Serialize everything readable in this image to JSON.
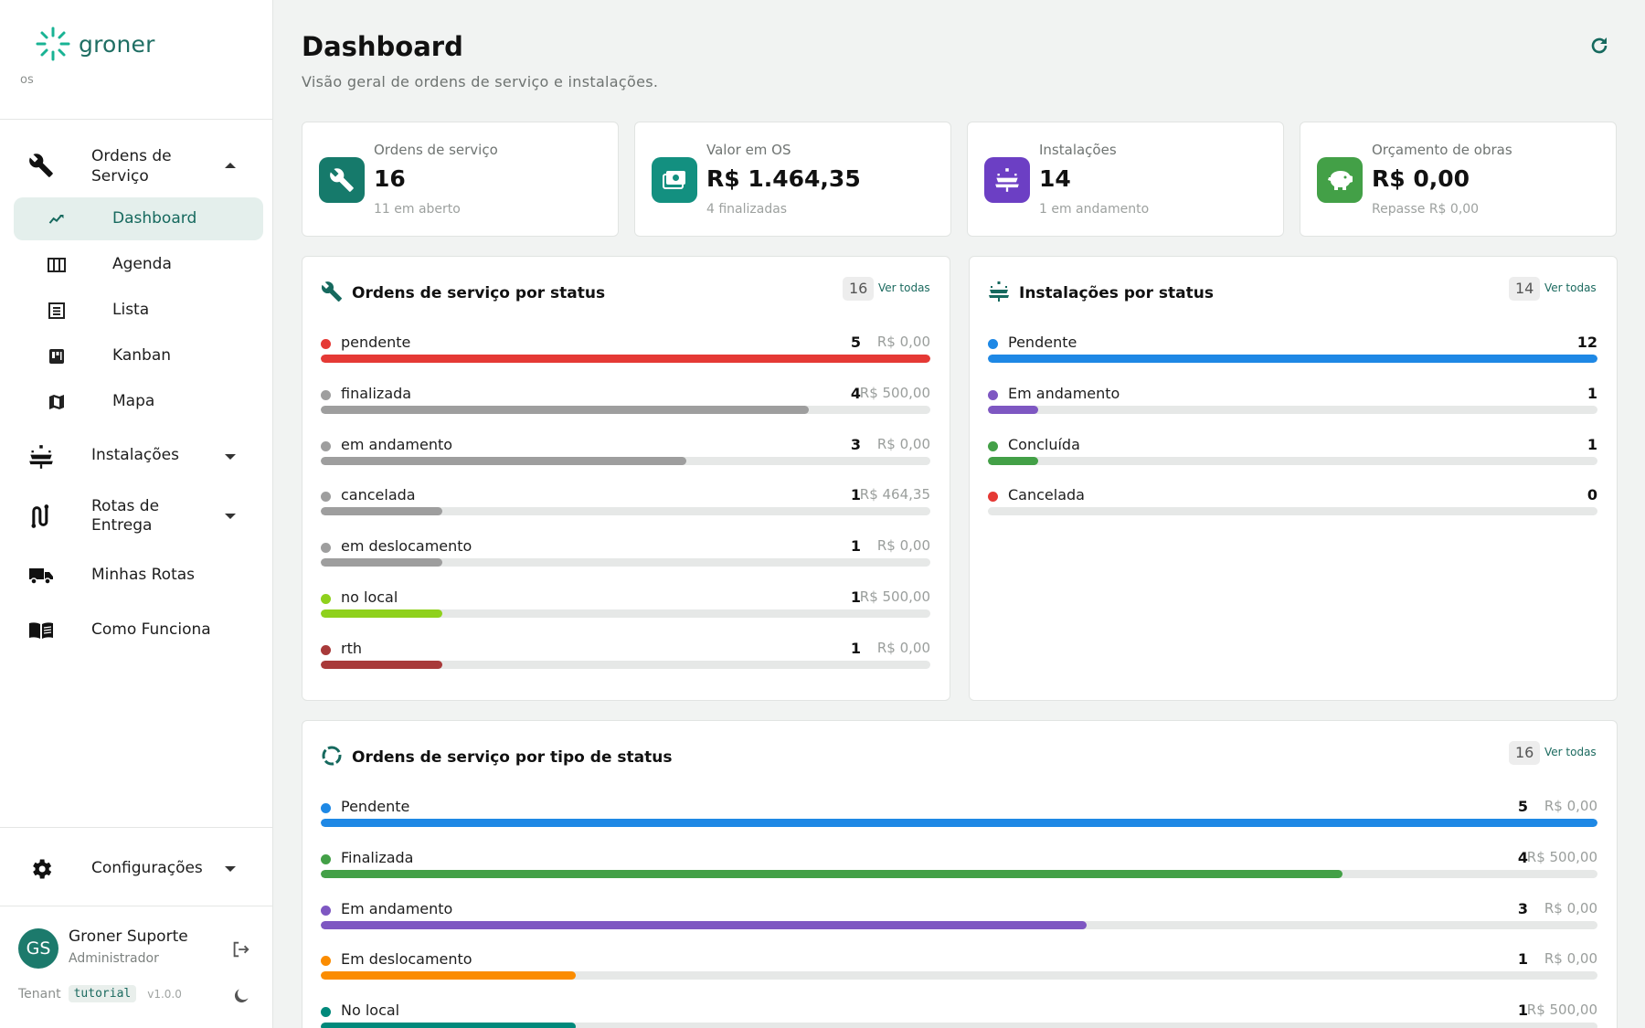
{
  "brand": {
    "name": "groner",
    "sub": "os"
  },
  "sidebar": {
    "group_os": {
      "label_line1": "Ordens de",
      "label_line2": "Serviço"
    },
    "sub_items": [
      {
        "label": "Dashboard",
        "icon": "trending-up-icon",
        "active": true
      },
      {
        "label": "Agenda",
        "icon": "calendar-grid-icon",
        "active": false
      },
      {
        "label": "Lista",
        "icon": "list-icon",
        "active": false
      },
      {
        "label": "Kanban",
        "icon": "kanban-icon",
        "active": false
      },
      {
        "label": "Mapa",
        "icon": "map-icon",
        "active": false
      }
    ],
    "instalacoes": "Instalações",
    "rotas": {
      "line1": "Rotas de",
      "line2": "Entrega"
    },
    "minhas_rotas": "Minhas Rotas",
    "como_funciona": "Como Funciona",
    "configuracoes": "Configurações"
  },
  "user": {
    "initials": "GS",
    "name": "Groner Suporte",
    "role": "Administrador",
    "tenant_label": "Tenant",
    "tenant_code": "tutorial",
    "version": "v1.0.0"
  },
  "header": {
    "title": "Dashboard",
    "subtitle": "Visão geral de ordens de serviço e instalações."
  },
  "stats": [
    {
      "label": "Ordens de serviço",
      "value": "16",
      "note": "11 em aberto",
      "color": "#167a6b",
      "icon": "wrench-icon"
    },
    {
      "label": "Valor em OS",
      "value": "R$ 1.464,35",
      "note": "4 finalizadas",
      "color": "#139080",
      "icon": "money-icon"
    },
    {
      "label": "Instalações",
      "value": "14",
      "note": "1 em andamento",
      "color": "#6c3fc4",
      "icon": "solar-panel-icon"
    },
    {
      "label": "Orçamento de obras",
      "value": "R$ 0,00",
      "note": "Repasse R$ 0,00",
      "color": "#43a047",
      "icon": "piggy-bank-icon"
    }
  ],
  "panel_os": {
    "title": "Ordens de serviço por status",
    "count": "16",
    "link": "Ver todas",
    "rows": [
      {
        "label": "pendente",
        "count": "5",
        "money": "R$ 0,00",
        "color": "#e53935",
        "fraction": 1.0
      },
      {
        "label": "finalizada",
        "count": "4",
        "money": "R$ 500,00",
        "color": "#9e9e9e",
        "fraction": 0.8
      },
      {
        "label": "em andamento",
        "count": "3",
        "money": "R$ 0,00",
        "color": "#9e9e9e",
        "fraction": 0.6
      },
      {
        "label": "cancelada",
        "count": "1",
        "money": "R$ 464,35",
        "color": "#9e9e9e",
        "fraction": 0.2
      },
      {
        "label": "em deslocamento",
        "count": "1",
        "money": "R$ 0,00",
        "color": "#9e9e9e",
        "fraction": 0.2
      },
      {
        "label": "no local",
        "count": "1",
        "money": "R$ 500,00",
        "color": "#8fd11c",
        "fraction": 0.2
      },
      {
        "label": "rth",
        "count": "1",
        "money": "R$ 0,00",
        "color": "#a83a3a",
        "fraction": 0.2
      }
    ]
  },
  "panel_inst": {
    "title": "Instalações por status",
    "count": "14",
    "link": "Ver todas",
    "rows": [
      {
        "label": "Pendente",
        "count": "12",
        "color": "#1e88e5",
        "fraction": 1.0
      },
      {
        "label": "Em andamento",
        "count": "1",
        "color": "#7e57c2",
        "fraction": 0.083
      },
      {
        "label": "Concluída",
        "count": "1",
        "color": "#43a047",
        "fraction": 0.083
      },
      {
        "label": "Cancelada",
        "count": "0",
        "color": "#e53935",
        "fraction": 0
      }
    ]
  },
  "panel_tipo": {
    "title": "Ordens de serviço por tipo de status",
    "count": "16",
    "link": "Ver todas",
    "rows": [
      {
        "label": "Pendente",
        "count": "5",
        "money": "R$ 0,00",
        "color": "#1e88e5",
        "fraction": 1.0
      },
      {
        "label": "Finalizada",
        "count": "4",
        "money": "R$ 500,00",
        "color": "#43a047",
        "fraction": 0.8
      },
      {
        "label": "Em andamento",
        "count": "3",
        "money": "R$ 0,00",
        "color": "#7e57c2",
        "fraction": 0.6
      },
      {
        "label": "Em deslocamento",
        "count": "1",
        "money": "R$ 0,00",
        "color": "#fb8c00",
        "fraction": 0.2
      },
      {
        "label": "No local",
        "count": "1",
        "money": "R$ 500,00",
        "color": "#00897b",
        "fraction": 0.2
      }
    ]
  }
}
